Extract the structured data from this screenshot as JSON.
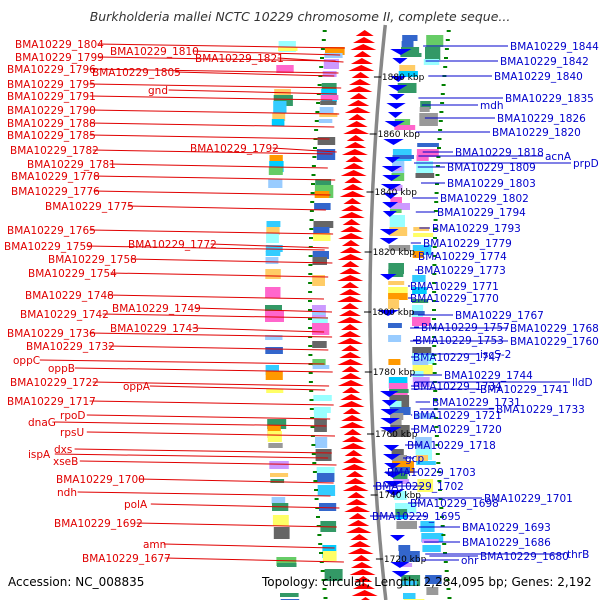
{
  "map": {
    "title": "Burkholderia mallei NCTC 10229 chromosome II, complete seque...",
    "accession": "Accession: NC_008835",
    "summary": "Topology: circular; Length: 2,284,095 bp; Genes: 2,192",
    "colors": {
      "left_labels": "#e00000",
      "right_labels": "#0000cc",
      "forward_arrows": "#ff0000",
      "reverse_arrows": "#0000ff",
      "backbone": "#888888",
      "ticks": "#008000"
    },
    "scale_labels": [
      "1880 kbp",
      "1860 kbp",
      "1840 kbp",
      "1820 kbp",
      "1800 kbp",
      "1780 kbp",
      "1760 kbp",
      "1740 kbp",
      "1720 kbp"
    ],
    "left_genes": [
      "BMA10229_1804",
      "BMA10229_1810",
      "BMA10229_1799",
      "BMA10229_1821",
      "BMA10229_1796",
      "BMA10229_1805",
      "BMA10229_1795",
      "gnd",
      "BMA10229_1791",
      "BMA10229_1790",
      "BMA10229_1788",
      "BMA10229_1785",
      "BMA10229_1792",
      "BMA10229_1782",
      "BMA10229_1781",
      "BMA10229_1778",
      "BMA10229_1776",
      "BMA10229_1775",
      "BMA10229_1765",
      "BMA10229_1772",
      "BMA10229_1759",
      "BMA10229_1758",
      "BMA10229_1754",
      "BMA10229_1748",
      "BMA10229_1749",
      "BMA10229_1742",
      "BMA10229_1743",
      "BMA10229_1736",
      "BMA10229_1732",
      "oppC",
      "oppB",
      "BMA10229_1722",
      "oppA",
      "BMA10229_1717",
      "rpoD",
      "dnaG",
      "rpsU",
      "dxs",
      "ispA",
      "xseB",
      "BMA10229_1700",
      "ndh",
      "polA",
      "BMA10229_1692",
      "amn",
      "BMA10229_1677"
    ],
    "right_genes": [
      "BMA10229_1844",
      "BMA10229_1842",
      "BMA10229_1840",
      "BMA10229_1835",
      "mdh",
      "BMA10229_1826",
      "BMA10229_1820",
      "acnA",
      "BMA10229_1818",
      "prpD",
      "BMA10229_1809",
      "BMA10229_1803",
      "BMA10229_1802",
      "BMA10229_1794",
      "BMA10229_1793",
      "BMA10229_1779",
      "BMA10229_1774",
      "BMA10229_1773",
      "BMA10229_1771",
      "BMA10229_1770",
      "BMA10229_1767",
      "BMA10229_1768",
      "BMA10229_1757",
      "BMA10229_1753",
      "BMA10229_1760",
      "iscS-2",
      "BMA10229_1747",
      "BMA10229_1744",
      "lldD",
      "BMA10229_1734",
      "BMA10229_1741",
      "BMA10229_1731",
      "BMA10229_1733",
      "BMA10229_1721",
      "BMA10229_1720",
      "BMA10229_1718",
      "gcp",
      "BMA10229_1703",
      "BMA10229_1702",
      "BMA10229_1701",
      "BMA10229_1698",
      "BMA10229_1695",
      "BMA10229_1693",
      "BMA10229_1686",
      "BMA10229_1680",
      "ohr",
      "thrB"
    ]
  }
}
